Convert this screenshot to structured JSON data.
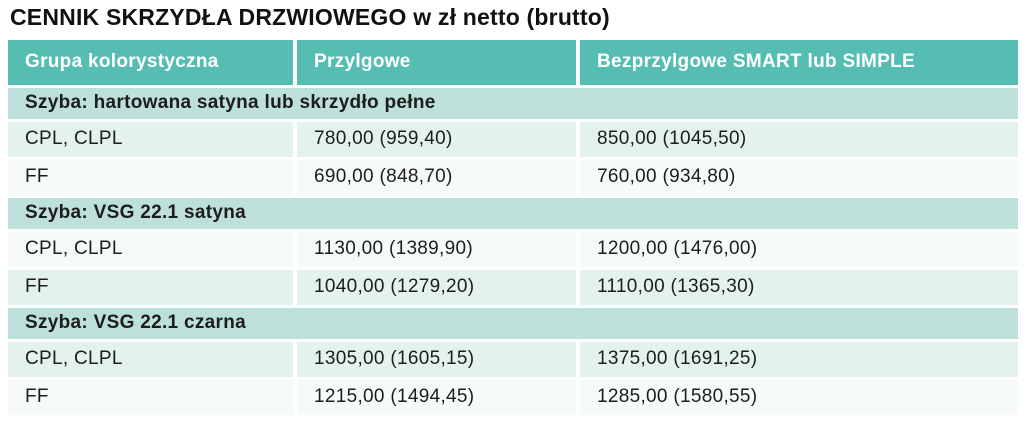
{
  "title": "CENNIK SKRZYDŁA DRZWIOWEGO w zł netto (brutto)",
  "table": {
    "columns": [
      "Grupa kolorystyczna",
      "Przylgowe",
      "Bezprzylgowe SMART lub SIMPLE"
    ],
    "sections": [
      {
        "header": "Szyba: hartowana satyna lub skrzydło pełne",
        "rows": [
          [
            "CPL, CLPL",
            "780,00 (959,40)",
            "850,00 (1045,50)"
          ],
          [
            "FF",
            "690,00 (848,70)",
            "760,00 (934,80)"
          ]
        ]
      },
      {
        "header": "Szyba: VSG 22.1 satyna",
        "rows": [
          [
            "CPL, CLPL",
            "1130,00 (1389,90)",
            "1200,00 (1476,00)"
          ],
          [
            "FF",
            "1040,00 (1279,20)",
            "1110,00 (1365,30)"
          ]
        ]
      },
      {
        "header": "Szyba: VSG 22.1 czarna",
        "rows": [
          [
            "CPL, CLPL",
            "1305,00 (1605,15)",
            "1375,00 (1691,25)"
          ],
          [
            "FF",
            "1215,00 (1494,45)",
            "1285,00 (1580,55)"
          ]
        ]
      }
    ]
  },
  "colors": {
    "header_bg": "#56bdb3",
    "section_bg": "#bde0db",
    "row_shade_teal": "#e3f2ef",
    "row_shade_white": "#f6fbfa",
    "header_text": "#ffffff",
    "body_text": "#1d1d1b"
  }
}
